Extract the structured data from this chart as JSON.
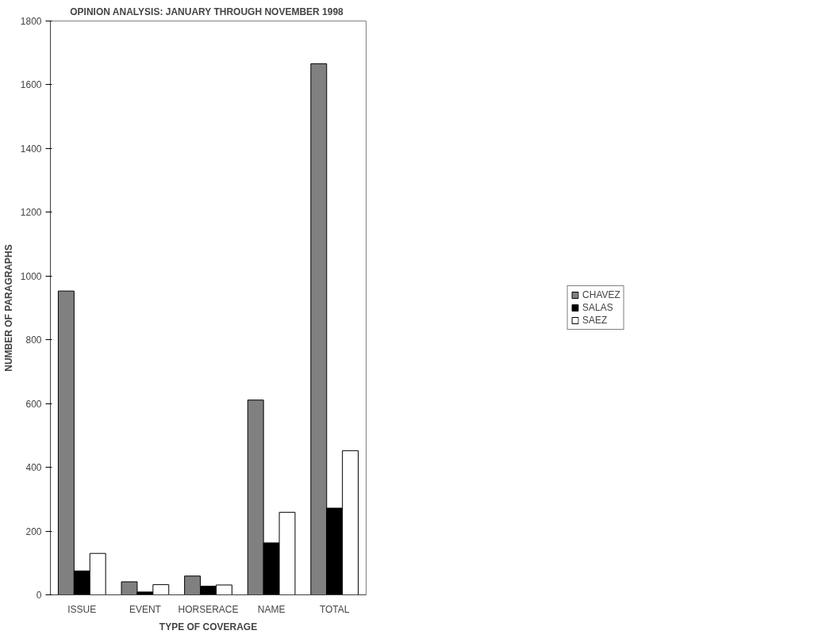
{
  "chart_data": {
    "type": "bar",
    "title": "OPINION ANALYSIS:  JANUARY THROUGH NOVEMBER 1998",
    "xlabel": "TYPE OF COVERAGE",
    "ylabel": "NUMBER OF PARAGRAPHS",
    "categories": [
      "ISSUE",
      "EVENT",
      "HORSERACE",
      "NAME",
      "TOTAL"
    ],
    "series": [
      {
        "name": "CHAVEZ",
        "color": "#808080",
        "values": [
          953,
          41,
          59,
          611,
          1666
        ]
      },
      {
        "name": "SALAS",
        "color": "#000000",
        "values": [
          75,
          9,
          27,
          163,
          272
        ]
      },
      {
        "name": "SAEZ",
        "color": "#ffffff",
        "values": [
          130,
          32,
          31,
          259,
          452
        ]
      }
    ],
    "ylim": [
      0,
      1800
    ],
    "yticks": [
      0,
      200,
      400,
      600,
      800,
      1000,
      1200,
      1400,
      1600,
      1800
    ],
    "grid": false,
    "legend": "right"
  }
}
